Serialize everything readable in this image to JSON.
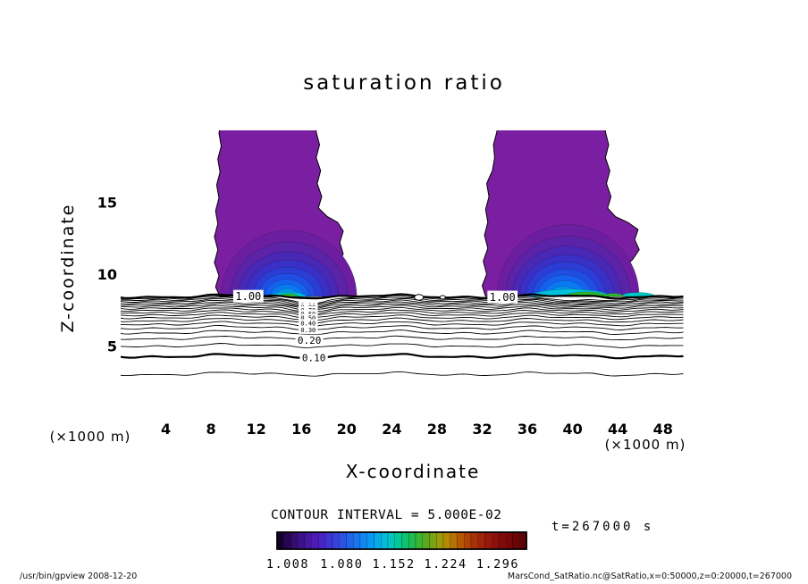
{
  "chart_data": {
    "type": "contour",
    "title": "saturation ratio",
    "xlabel": "X-coordinate",
    "ylabel": "Z-coordinate",
    "x_unit": "(×1000 m)",
    "x_range": [
      0,
      50
    ],
    "z_range": [
      0,
      20
    ],
    "x_ticks": [
      4,
      8,
      12,
      16,
      20,
      24,
      28,
      32,
      36,
      40,
      44,
      48
    ],
    "z_ticks": [
      5,
      10,
      15
    ],
    "contour_interval": 0.05,
    "contour_interval_label": "CONTOUR INTERVAL = 5.000E-02",
    "time_label": "t=267000 s",
    "levels": [
      1.0,
      0.95,
      0.9,
      0.85,
      0.8,
      0.75,
      0.7,
      0.65,
      0.6,
      0.55,
      0.5,
      0.45,
      0.4,
      0.35,
      0.3,
      0.25,
      0.2,
      0.15,
      0.1,
      0.05
    ],
    "bold_levels": [
      1.0,
      0.1
    ],
    "surface_z": 8.45,
    "log_scale": 1.8,
    "line_labels": [
      {
        "text": "1.00",
        "x": 11.3,
        "level": 1.0,
        "size": 12
      },
      {
        "text": "1.00",
        "x": 33.8,
        "level": 1.0,
        "size": 12
      },
      {
        "text": "0.90",
        "x": 16.6,
        "level": 0.9,
        "size": 7
      },
      {
        "text": "0.80",
        "x": 16.6,
        "level": 0.8,
        "size": 7
      },
      {
        "text": "0.70",
        "x": 16.6,
        "level": 0.7,
        "size": 7
      },
      {
        "text": "0.60",
        "x": 16.6,
        "level": 0.6,
        "size": 7
      },
      {
        "text": "0.50",
        "x": 16.6,
        "level": 0.5,
        "size": 7
      },
      {
        "text": "0.40",
        "x": 16.6,
        "level": 0.4,
        "size": 7
      },
      {
        "text": "0.30",
        "x": 16.6,
        "level": 0.3,
        "size": 7
      },
      {
        "text": "0.20",
        "x": 16.7,
        "level": 0.2,
        "size": 11
      },
      {
        "text": "0.10",
        "x": 17.1,
        "level": 0.1,
        "size": 11
      }
    ],
    "closed_contours": [
      {
        "x": 26.4,
        "rx": 5,
        "ry": 3.2
      },
      {
        "x": 28.5,
        "rx": 3,
        "ry": 2.0
      }
    ],
    "plumes": [
      {
        "fill": "#7b1fa2",
        "outline": [
          [
            8.8,
            8.45
          ],
          [
            8.4,
            9.1
          ],
          [
            8.7,
            9.9
          ],
          [
            8.3,
            10.8
          ],
          [
            8.6,
            11.7
          ],
          [
            8.3,
            12.6
          ],
          [
            8.6,
            13.5
          ],
          [
            8.4,
            14.4
          ],
          [
            8.7,
            15.3
          ],
          [
            8.5,
            16.2
          ],
          [
            8.8,
            17.1
          ],
          [
            8.6,
            18.0
          ],
          [
            8.9,
            18.9
          ],
          [
            8.7,
            19.8
          ],
          [
            8.9,
            20.8
          ],
          [
            17.5,
            20.8
          ],
          [
            17.3,
            19.9
          ],
          [
            17.6,
            19.0
          ],
          [
            17.3,
            18.1
          ],
          [
            17.7,
            17.2
          ],
          [
            17.4,
            16.3
          ],
          [
            17.8,
            15.4
          ],
          [
            17.5,
            14.6
          ],
          [
            18.3,
            14.0
          ],
          [
            19.2,
            13.6
          ],
          [
            19.7,
            13.0
          ],
          [
            19.4,
            12.2
          ],
          [
            19.7,
            11.4
          ],
          [
            19.2,
            10.7
          ],
          [
            19.5,
            10.0
          ],
          [
            18.9,
            9.4
          ],
          [
            19.1,
            8.9
          ],
          [
            19.0,
            8.45
          ]
        ],
        "rings": [
          {
            "cx": 14.9,
            "w": 12.0,
            "h": 4.6,
            "c": "#6b1fa0"
          },
          {
            "cx": 14.9,
            "w": 10.4,
            "h": 3.8,
            "c": "#5a23a8"
          },
          {
            "cx": 14.8,
            "w": 8.9,
            "h": 3.1,
            "c": "#4a28b6"
          },
          {
            "cx": 14.8,
            "w": 7.5,
            "h": 2.55,
            "c": "#3a30c6"
          },
          {
            "cx": 14.8,
            "w": 6.2,
            "h": 2.05,
            "c": "#2c3dd6"
          },
          {
            "cx": 14.7,
            "w": 5.0,
            "h": 1.6,
            "c": "#204ee2"
          },
          {
            "cx": 14.7,
            "w": 3.9,
            "h": 1.2,
            "c": "#1562ee"
          },
          {
            "cx": 14.7,
            "w": 2.9,
            "h": 0.85,
            "c": "#0a7af2"
          },
          {
            "cx": 14.7,
            "w": 2.0,
            "h": 0.55,
            "c": "#0396ee"
          }
        ],
        "streaks": [
          {
            "cx": 14.8,
            "w": 3.2,
            "h": 0.3,
            "c": "#00c0dc"
          },
          {
            "cx": 14.9,
            "w": 1.6,
            "h": 0.2,
            "c": "#2eb82e"
          }
        ]
      },
      {
        "fill": "#7b1fa2",
        "outline": [
          [
            32.3,
            8.45
          ],
          [
            32.0,
            9.2
          ],
          [
            32.4,
            10.0
          ],
          [
            32.1,
            10.9
          ],
          [
            32.5,
            11.8
          ],
          [
            32.2,
            12.7
          ],
          [
            32.5,
            13.6
          ],
          [
            32.3,
            14.5
          ],
          [
            32.6,
            15.4
          ],
          [
            32.4,
            16.3
          ],
          [
            32.9,
            17.2
          ],
          [
            33.1,
            18.1
          ],
          [
            33.0,
            19.0
          ],
          [
            33.3,
            19.9
          ],
          [
            33.4,
            20.8
          ],
          [
            43.1,
            20.8
          ],
          [
            42.9,
            19.9
          ],
          [
            43.2,
            19.0
          ],
          [
            42.9,
            18.1
          ],
          [
            43.3,
            17.2
          ],
          [
            43.0,
            16.3
          ],
          [
            43.4,
            15.4
          ],
          [
            43.1,
            14.6
          ],
          [
            43.8,
            14.0
          ],
          [
            44.9,
            13.6
          ],
          [
            45.8,
            13.1
          ],
          [
            45.5,
            12.4
          ],
          [
            45.9,
            11.7
          ],
          [
            45.3,
            11.0
          ],
          [
            44.5,
            10.5
          ],
          [
            44.2,
            10.0
          ],
          [
            44.9,
            9.5
          ],
          [
            45.2,
            9.0
          ],
          [
            45.2,
            8.45
          ]
        ],
        "rings": [
          {
            "cx": 39.6,
            "w": 12.6,
            "h": 5.0,
            "c": "#6b1fa0"
          },
          {
            "cx": 39.6,
            "w": 11.1,
            "h": 4.2,
            "c": "#5a23a8"
          },
          {
            "cx": 39.5,
            "w": 9.7,
            "h": 3.5,
            "c": "#4a28b6"
          },
          {
            "cx": 39.5,
            "w": 8.4,
            "h": 2.9,
            "c": "#3a30c6"
          },
          {
            "cx": 39.4,
            "w": 7.1,
            "h": 2.4,
            "c": "#2c3dd6"
          },
          {
            "cx": 39.4,
            "w": 5.9,
            "h": 1.9,
            "c": "#204ee2"
          },
          {
            "cx": 39.3,
            "w": 4.8,
            "h": 1.5,
            "c": "#1562ee"
          },
          {
            "cx": 39.3,
            "w": 3.7,
            "h": 1.1,
            "c": "#0a7af2"
          },
          {
            "cx": 39.2,
            "w": 2.7,
            "h": 0.7,
            "c": "#0396ee"
          }
        ],
        "streaks": [
          {
            "cx": 39.8,
            "w": 7.0,
            "h": 0.5,
            "c": "#00c0dc"
          },
          {
            "cx": 41.2,
            "w": 3.6,
            "h": 0.32,
            "c": "#2eb82e"
          },
          {
            "cx": 45.8,
            "w": 3.0,
            "h": 0.28,
            "c": "#00c8c8"
          },
          {
            "cx": 43.6,
            "w": 1.8,
            "h": 0.22,
            "c": "#2eb82e"
          }
        ]
      }
    ],
    "colorbar": {
      "colors": [
        "#14002e",
        "#25064f",
        "#320c6e",
        "#3d118a",
        "#4617a3",
        "#4d1cb8",
        "#4826c6",
        "#3f33d2",
        "#3542dc",
        "#2b52e4",
        "#2263ec",
        "#1975f2",
        "#1187f4",
        "#0a99f2",
        "#05abea",
        "#02bcda",
        "#02c6bc",
        "#04c897",
        "#0cc472",
        "#1fbc50",
        "#39b334",
        "#58ab20",
        "#7aa312",
        "#9c9a08",
        "#b28a04",
        "#b87102",
        "#b65802",
        "#b04203",
        "#a83107",
        "#a0240a",
        "#97190c",
        "#8d100c",
        "#820a0a",
        "#770608",
        "#6c0406",
        "#600204"
      ],
      "ticks": [
        {
          "label": "1.008",
          "f": 0.043
        },
        {
          "label": "1.080",
          "f": 0.259
        },
        {
          "label": "1.152",
          "f": 0.468
        },
        {
          "label": "1.224",
          "f": 0.676
        },
        {
          "label": "1.296",
          "f": 0.885
        }
      ]
    }
  },
  "footer": {
    "left": "/usr/bin/gpview  2008-12-20",
    "right": "MarsCond_SatRatio.nc@SatRatio,x=0:50000,z=0:20000,t=267000"
  }
}
